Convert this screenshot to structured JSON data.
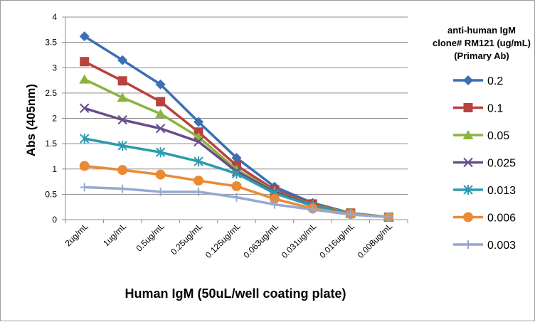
{
  "chart_data": {
    "type": "line",
    "title": "",
    "xlabel": "Human IgM (50uL/well coating plate)",
    "ylabel": "Abs (405nm)",
    "ylim": [
      0,
      4
    ],
    "yticks": [
      "0",
      "0.5",
      "1",
      "1.5",
      "2",
      "2.5",
      "3",
      "3.5",
      "4"
    ],
    "grid": "horizontal",
    "legend_position": "right",
    "legend_title": [
      "anti-human IgM",
      "clone# RM121 (ug/mL)",
      "(Primary Ab)"
    ],
    "categories": [
      "2ug/mL",
      "1ug/mL",
      "0.5ug/mL",
      "0.25ug/mL",
      "0.125ug/mL",
      "0.063ug/mL",
      "0.031ug/mL",
      "0.016ug/mL",
      "0.008ug/mL"
    ],
    "series": [
      {
        "name": "0.2",
        "color": "#3A6EB5",
        "marker": "diamond",
        "values": [
          3.62,
          3.15,
          2.67,
          1.93,
          1.22,
          0.65,
          0.33,
          0.13,
          0.05
        ]
      },
      {
        "name": "0.1",
        "color": "#B9413E",
        "marker": "square",
        "values": [
          3.12,
          2.74,
          2.33,
          1.73,
          1.07,
          0.59,
          0.31,
          0.13,
          0.05
        ]
      },
      {
        "name": "0.05",
        "color": "#8DB33F",
        "marker": "triangle",
        "values": [
          2.77,
          2.41,
          2.09,
          1.63,
          0.99,
          0.56,
          0.29,
          0.13,
          0.05
        ]
      },
      {
        "name": "0.025",
        "color": "#6A4C8A",
        "marker": "x",
        "values": [
          2.2,
          1.97,
          1.8,
          1.54,
          0.95,
          0.55,
          0.28,
          0.12,
          0.05
        ]
      },
      {
        "name": "0.013",
        "color": "#2E9AAE",
        "marker": "asterisk",
        "values": [
          1.6,
          1.46,
          1.33,
          1.15,
          0.91,
          0.52,
          0.27,
          0.12,
          0.05
        ]
      },
      {
        "name": "0.006",
        "color": "#EA8A35",
        "marker": "circle",
        "values": [
          1.06,
          0.98,
          0.89,
          0.77,
          0.66,
          0.41,
          0.22,
          0.11,
          0.05
        ]
      },
      {
        "name": "0.003",
        "color": "#93A9D0",
        "marker": "plus",
        "values": [
          0.64,
          0.61,
          0.55,
          0.55,
          0.44,
          0.3,
          0.2,
          0.1,
          0.05
        ]
      }
    ]
  }
}
